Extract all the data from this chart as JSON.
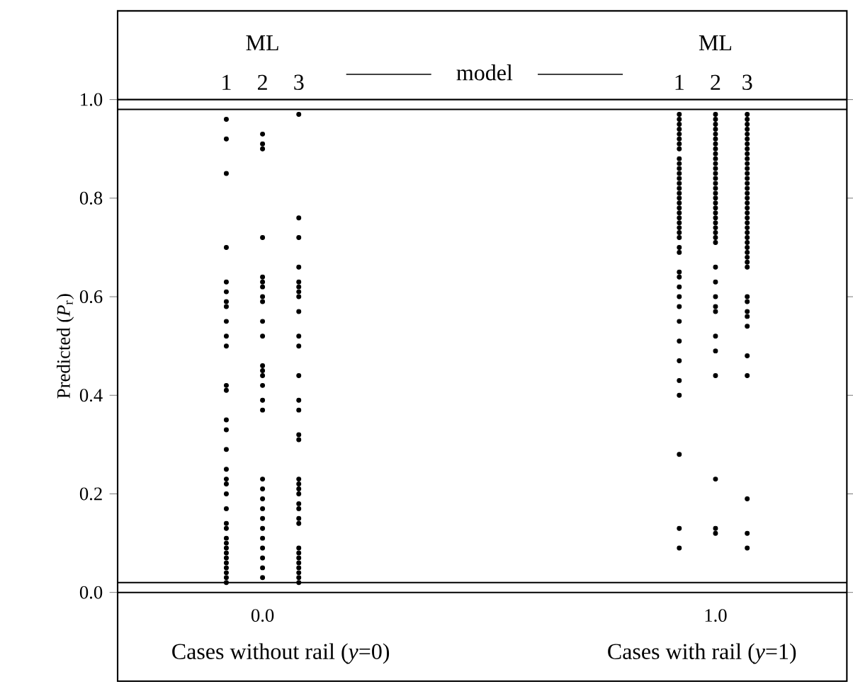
{
  "chart_data": {
    "type": "scatter",
    "ylabel": "Predicted (*P*$_{r}$)",
    "xlim": [
      -0.32,
      1.29
    ],
    "ylim": [
      -0.18,
      1.18
    ],
    "xticks": [
      {
        "value": 0,
        "label": "0.0"
      },
      {
        "value": 1,
        "label": "1.0"
      }
    ],
    "yticks": [
      {
        "value": 0,
        "label": "0.0"
      },
      {
        "value": 0.2,
        "label": "0.2"
      },
      {
        "value": 0.4,
        "label": "0.4"
      },
      {
        "value": 0.6,
        "label": "0.6"
      },
      {
        "value": 0.8,
        "label": "0.8"
      },
      {
        "value": 1,
        "label": "1.0"
      }
    ],
    "grid": false,
    "marker": "circle",
    "series": [
      {
        "color": "#000000",
        "x": [
          -0.08,
          -0.08,
          -0.08,
          -0.08,
          -0.08,
          -0.08,
          -0.08,
          -0.08,
          -0.08,
          -0.08,
          -0.08,
          -0.08,
          -0.08,
          -0.08,
          -0.08,
          -0.08,
          -0.08,
          -0.08,
          -0.08,
          -0.08,
          -0.08,
          -0.08,
          -0.08,
          -0.08,
          -0.08,
          -0.08,
          -0.08,
          -0.08,
          -0.08,
          -0.08,
          -0.08,
          -0.08,
          -0.08
        ],
        "values": [
          0.96,
          0.92,
          0.85,
          0.7,
          0.63,
          0.61,
          0.59,
          0.58,
          0.55,
          0.52,
          0.5,
          0.42,
          0.41,
          0.35,
          0.33,
          0.29,
          0.25,
          0.23,
          0.22,
          0.2,
          0.17,
          0.14,
          0.13,
          0.11,
          0.1,
          0.09,
          0.08,
          0.07,
          0.06,
          0.05,
          0.04,
          0.03,
          0.02
        ]
      },
      {
        "color": "#000000",
        "x": [
          0,
          0,
          0,
          0,
          0,
          0,
          0,
          0,
          0,
          0,
          0,
          0,
          0,
          0,
          0,
          0,
          0,
          0,
          0,
          0,
          0,
          0,
          0,
          0,
          0,
          0,
          0,
          0
        ],
        "values": [
          0.93,
          0.91,
          0.9,
          0.72,
          0.64,
          0.63,
          0.62,
          0.6,
          0.59,
          0.55,
          0.52,
          0.46,
          0.45,
          0.44,
          0.42,
          0.39,
          0.37,
          0.23,
          0.21,
          0.19,
          0.17,
          0.15,
          0.13,
          0.11,
          0.09,
          0.07,
          0.05,
          0.03
        ]
      },
      {
        "color": "#000000",
        "x": [
          0.08,
          0.08,
          0.08,
          0.08,
          0.08,
          0.08,
          0.08,
          0.08,
          0.08,
          0.08,
          0.08,
          0.08,
          0.08,
          0.08,
          0.08,
          0.08,
          0.08,
          0.08,
          0.08,
          0.08,
          0.08,
          0.08,
          0.08,
          0.08,
          0.08,
          0.08,
          0.08,
          0.08,
          0.08,
          0.08,
          0.08,
          0.08
        ],
        "values": [
          0.97,
          0.76,
          0.72,
          0.66,
          0.63,
          0.62,
          0.61,
          0.6,
          0.57,
          0.52,
          0.5,
          0.44,
          0.39,
          0.37,
          0.32,
          0.31,
          0.23,
          0.22,
          0.21,
          0.2,
          0.18,
          0.17,
          0.15,
          0.14,
          0.09,
          0.08,
          0.07,
          0.06,
          0.05,
          0.04,
          0.03,
          0.02
        ]
      },
      {
        "color": "#000000",
        "x": [
          0.92,
          0.92,
          0.92,
          0.92,
          0.92,
          0.92,
          0.92,
          0.92,
          0.92,
          0.92,
          0.92,
          0.92,
          0.92,
          0.92,
          0.92,
          0.92,
          0.92,
          0.92,
          0.92,
          0.92,
          0.92,
          0.92,
          0.92,
          0.92,
          0.92,
          0.92,
          0.92,
          0.92,
          0.92,
          0.92,
          0.92,
          0.92,
          0.92,
          0.92,
          0.92,
          0.92,
          0.92,
          0.92,
          0.92,
          0.92
        ],
        "values": [
          0.97,
          0.96,
          0.95,
          0.94,
          0.93,
          0.92,
          0.91,
          0.9,
          0.88,
          0.87,
          0.86,
          0.85,
          0.84,
          0.83,
          0.82,
          0.81,
          0.8,
          0.79,
          0.78,
          0.77,
          0.76,
          0.75,
          0.74,
          0.73,
          0.72,
          0.7,
          0.69,
          0.65,
          0.64,
          0.62,
          0.6,
          0.58,
          0.55,
          0.51,
          0.47,
          0.43,
          0.4,
          0.28,
          0.13,
          0.09
        ]
      },
      {
        "color": "#000000",
        "x": [
          1,
          1,
          1,
          1,
          1,
          1,
          1,
          1,
          1,
          1,
          1,
          1,
          1,
          1,
          1,
          1,
          1,
          1,
          1,
          1,
          1,
          1,
          1,
          1,
          1,
          1,
          1,
          1,
          1,
          1,
          1,
          1,
          1,
          1,
          1,
          1,
          1,
          1
        ],
        "values": [
          0.97,
          0.96,
          0.95,
          0.94,
          0.93,
          0.92,
          0.91,
          0.9,
          0.89,
          0.88,
          0.87,
          0.86,
          0.85,
          0.84,
          0.83,
          0.82,
          0.81,
          0.8,
          0.79,
          0.78,
          0.77,
          0.76,
          0.75,
          0.74,
          0.73,
          0.72,
          0.71,
          0.66,
          0.63,
          0.6,
          0.58,
          0.57,
          0.52,
          0.49,
          0.44,
          0.23,
          0.13,
          0.12
        ]
      },
      {
        "color": "#000000",
        "x": [
          1.07,
          1.07,
          1.07,
          1.07,
          1.07,
          1.07,
          1.07,
          1.07,
          1.07,
          1.07,
          1.07,
          1.07,
          1.07,
          1.07,
          1.07,
          1.07,
          1.07,
          1.07,
          1.07,
          1.07,
          1.07,
          1.07,
          1.07,
          1.07,
          1.07,
          1.07,
          1.07,
          1.07,
          1.07,
          1.07,
          1.07,
          1.07,
          1.07,
          1.07,
          1.07,
          1.07,
          1.07,
          1.07,
          1.07,
          1.07,
          1.07,
          1.07
        ],
        "values": [
          0.97,
          0.96,
          0.95,
          0.94,
          0.93,
          0.92,
          0.91,
          0.9,
          0.89,
          0.88,
          0.87,
          0.86,
          0.85,
          0.84,
          0.83,
          0.82,
          0.81,
          0.8,
          0.79,
          0.78,
          0.77,
          0.76,
          0.75,
          0.74,
          0.73,
          0.72,
          0.71,
          0.7,
          0.69,
          0.68,
          0.67,
          0.66,
          0.6,
          0.59,
          0.57,
          0.56,
          0.54,
          0.48,
          0.44,
          0.19,
          0.12,
          0.09
        ]
      }
    ],
    "ref_lines": [
      {
        "axis": "y",
        "value": 1.0,
        "color": "#000000"
      },
      {
        "axis": "y",
        "value": 0.98,
        "color": "#000000"
      },
      {
        "axis": "y",
        "value": 0.02,
        "color": "#000000"
      },
      {
        "axis": "y",
        "value": 0.0,
        "color": "#000000"
      }
    ],
    "annotations": [
      "ML",
      "1",
      "2",
      "3",
      "model",
      "ML",
      "1",
      "2",
      "3",
      "Cases without rail (*y*=0)",
      "Cases with rail (*y*=1)"
    ]
  }
}
